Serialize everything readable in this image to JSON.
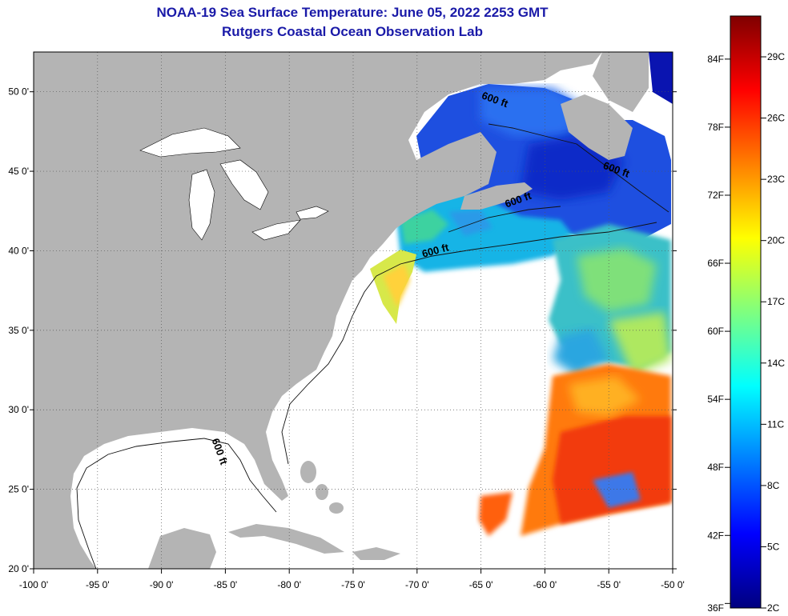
{
  "header": {
    "title": "NOAA-19 Sea Surface Temperature:  June 05, 2022 2253 GMT",
    "subtitle": "Rutgers Coastal Ocean Observation Lab"
  },
  "map": {
    "lon_range": [
      -100,
      -50
    ],
    "lat_range": [
      20,
      52.5
    ],
    "lon_ticks": [
      {
        "value": -100,
        "label": "-100 0'"
      },
      {
        "value": -95,
        "label": "-95 0'"
      },
      {
        "value": -90,
        "label": "-90 0'"
      },
      {
        "value": -85,
        "label": "-85 0'"
      },
      {
        "value": -80,
        "label": "-80 0'"
      },
      {
        "value": -75,
        "label": "-75 0'"
      },
      {
        "value": -70,
        "label": "-70 0'"
      },
      {
        "value": -65,
        "label": "-65 0'"
      },
      {
        "value": -60,
        "label": "-60 0'"
      },
      {
        "value": -55,
        "label": "-55 0'"
      },
      {
        "value": -50,
        "label": "-50 0'"
      }
    ],
    "lat_ticks": [
      {
        "value": 20,
        "label": "20 0'"
      },
      {
        "value": 25,
        "label": "25 0'"
      },
      {
        "value": 30,
        "label": "30 0'"
      },
      {
        "value": 35,
        "label": "35 0'"
      },
      {
        "value": 40,
        "label": "40 0'"
      },
      {
        "value": 45,
        "label": "45 0'"
      },
      {
        "value": 50,
        "label": "50 0'"
      }
    ],
    "contour_labels": [
      {
        "text": "600 ft",
        "lon": -64.0,
        "lat": 49.3,
        "rotate": 20
      },
      {
        "text": "600 ft",
        "lon": -54.5,
        "lat": 44.9,
        "rotate": 20
      },
      {
        "text": "600 ft",
        "lon": -62.0,
        "lat": 43.0,
        "rotate": -20
      },
      {
        "text": "600 ft",
        "lon": -68.5,
        "lat": 39.8,
        "rotate": -15
      },
      {
        "text": "600 ft",
        "lon": -85.7,
        "lat": 27.3,
        "rotate": 70
      }
    ],
    "colors": {
      "land": "#b4b4b4",
      "ocean_nodata": "#ffffff",
      "grid": "#555555"
    }
  },
  "colorbar": {
    "min_c": 2,
    "max_c": 31,
    "fahrenheit_ticks": [
      {
        "value": 36,
        "label": "36F"
      },
      {
        "value": 42,
        "label": "42F"
      },
      {
        "value": 48,
        "label": "48F"
      },
      {
        "value": 54,
        "label": "54F"
      },
      {
        "value": 60,
        "label": "60F"
      },
      {
        "value": 66,
        "label": "66F"
      },
      {
        "value": 72,
        "label": "72F"
      },
      {
        "value": 78,
        "label": "78F"
      },
      {
        "value": 84,
        "label": "84F"
      }
    ],
    "celsius_ticks": [
      {
        "value": 2,
        "label": "2C"
      },
      {
        "value": 5,
        "label": "5C"
      },
      {
        "value": 8,
        "label": "8C"
      },
      {
        "value": 11,
        "label": "11C"
      },
      {
        "value": 14,
        "label": "14C"
      },
      {
        "value": 17,
        "label": "17C"
      },
      {
        "value": 20,
        "label": "20C"
      },
      {
        "value": 23,
        "label": "23C"
      },
      {
        "value": 26,
        "label": "26C"
      },
      {
        "value": 29,
        "label": "29C"
      }
    ],
    "stops": [
      "#00007f",
      "#0000ff",
      "#007fff",
      "#00ffff",
      "#7fff7f",
      "#ffff00",
      "#ff7f00",
      "#ff0000",
      "#7f0000"
    ]
  }
}
